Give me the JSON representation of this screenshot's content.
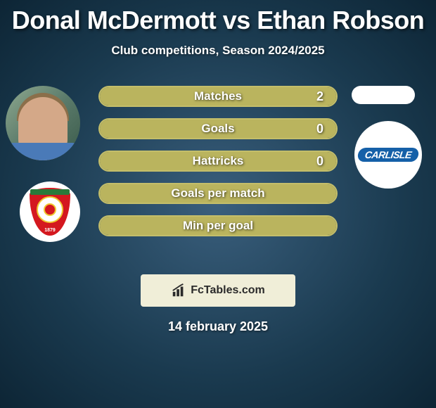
{
  "title": "Donal McDermott vs Ethan Robson",
  "subtitle": "Club competitions, Season 2024/2025",
  "date": "14 february 2025",
  "attribution": "FcTables.com",
  "player_left": {
    "name": "Donal McDermott",
    "club_name": "Swindon Town",
    "club_year": "1879"
  },
  "player_right": {
    "name": "Ethan Robson",
    "club_name": "CARLISLE"
  },
  "colors": {
    "background_center": "#3a5f7d",
    "background_edge": "#0d2535",
    "stat_border": "#c4be6a",
    "stat_fill": "#bab45e",
    "text": "#ffffff",
    "attribution_bg": "#f0eed8",
    "club_right_bg": "#1560a8",
    "club_left_shield": "#d4181f"
  },
  "stats": [
    {
      "label": "Matches",
      "value": "2",
      "fill_pct": 100
    },
    {
      "label": "Goals",
      "value": "0",
      "fill_pct": 100
    },
    {
      "label": "Hattricks",
      "value": "0",
      "fill_pct": 100
    },
    {
      "label": "Goals per match",
      "value": "",
      "fill_pct": 100
    },
    {
      "label": "Min per goal",
      "value": "",
      "fill_pct": 100
    }
  ],
  "style": {
    "title_fontsize": 36,
    "subtitle_fontsize": 17,
    "stat_label_fontsize": 17,
    "stat_value_fontsize": 18,
    "date_fontsize": 18,
    "stat_row_height": 30,
    "stat_row_gap": 16,
    "border_radius": 15
  }
}
